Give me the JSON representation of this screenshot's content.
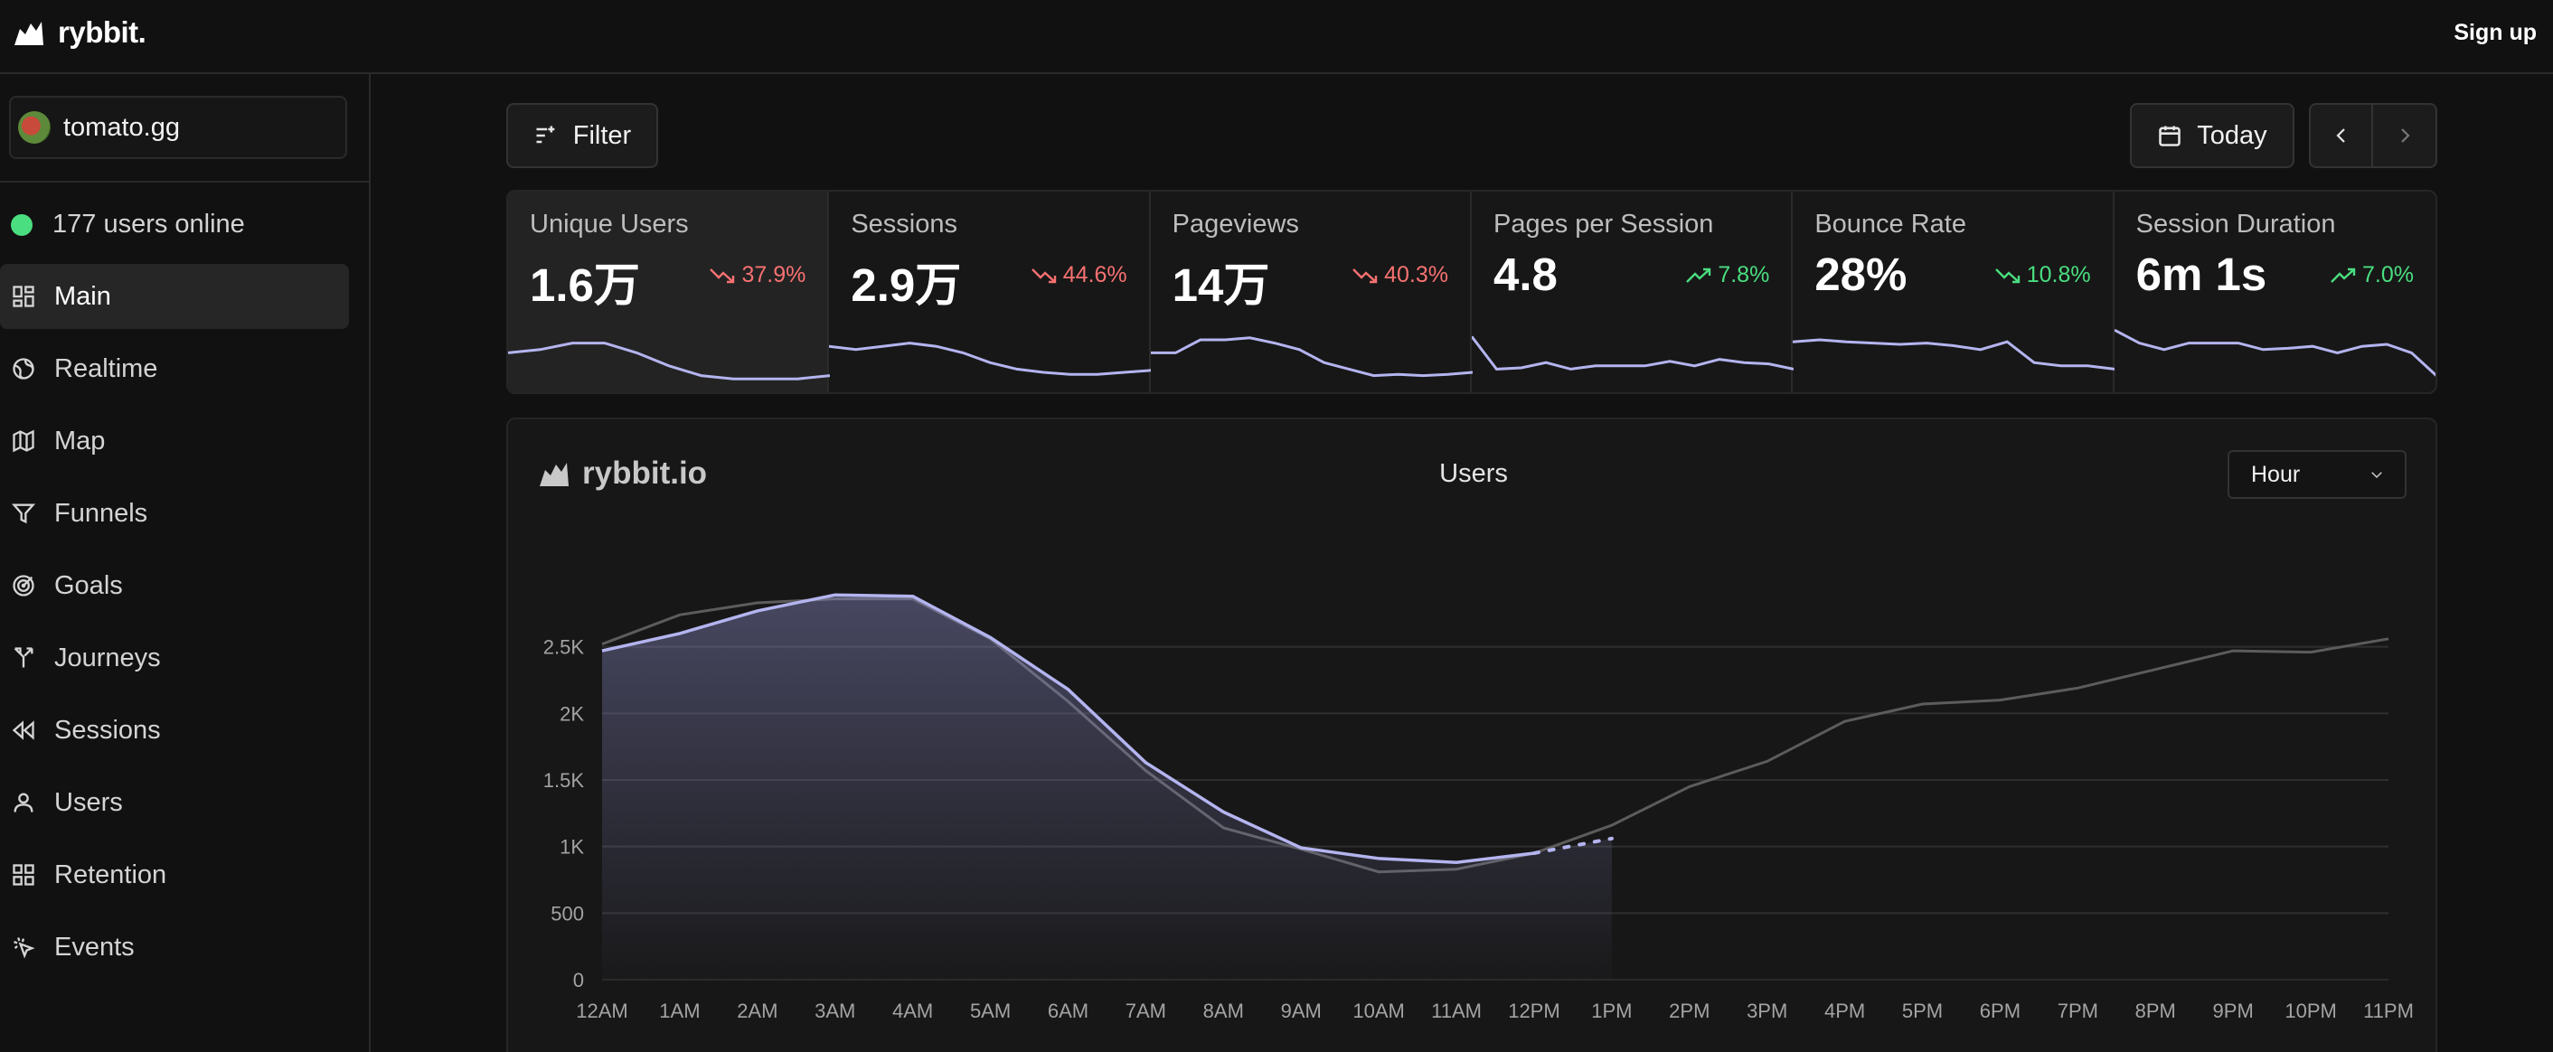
{
  "app": {
    "name": "rybbit.",
    "signup_label": "Sign up"
  },
  "sidebar": {
    "site": "tomato.gg",
    "online_text": "177 users online",
    "items": [
      {
        "label": "Main",
        "icon": "dashboard-icon",
        "active": true
      },
      {
        "label": "Realtime",
        "icon": "globe-icon"
      },
      {
        "label": "Map",
        "icon": "map-icon"
      },
      {
        "label": "Funnels",
        "icon": "funnel-icon"
      },
      {
        "label": "Goals",
        "icon": "target-icon"
      },
      {
        "label": "Journeys",
        "icon": "split-icon"
      },
      {
        "label": "Sessions",
        "icon": "rewind-icon"
      },
      {
        "label": "Users",
        "icon": "user-icon"
      },
      {
        "label": "Retention",
        "icon": "grid-icon"
      },
      {
        "label": "Events",
        "icon": "pointer-click-icon"
      }
    ]
  },
  "toolbar": {
    "filter_label": "Filter",
    "date_label": "Today"
  },
  "metrics": [
    {
      "label": "Unique Users",
      "value": "1.6万",
      "change": "37.9%",
      "trend": "down"
    },
    {
      "label": "Sessions",
      "value": "2.9万",
      "change": "44.6%",
      "trend": "down"
    },
    {
      "label": "Pageviews",
      "value": "14万",
      "change": "40.3%",
      "trend": "down"
    },
    {
      "label": "Pages per Session",
      "value": "4.8",
      "change": "7.8%",
      "trend": "up"
    },
    {
      "label": "Bounce Rate",
      "value": "28%",
      "change": "10.8%",
      "trend": "up"
    },
    {
      "label": "Session Duration",
      "value": "6m 1s",
      "change": "7.0%",
      "trend": "up"
    }
  ],
  "chart": {
    "brand": "rybbit.io",
    "title": "Users",
    "granularity": "Hour"
  },
  "chart_data": {
    "type": "line",
    "title": "Users",
    "x": [
      "12AM",
      "1AM",
      "2AM",
      "3AM",
      "4AM",
      "5AM",
      "6AM",
      "7AM",
      "8AM",
      "9AM",
      "10AM",
      "11AM",
      "12PM",
      "1PM",
      "2PM",
      "3PM",
      "4PM",
      "5PM",
      "6PM",
      "7PM",
      "8PM",
      "9PM",
      "10PM",
      "11PM"
    ],
    "yticks": [
      "0",
      "500",
      "1K",
      "1.5K",
      "2K",
      "2.5K"
    ],
    "ylim": [
      0,
      3000
    ],
    "series": [
      {
        "values": [
          2470,
          2600,
          2770,
          2890,
          2880,
          2570,
          2180,
          1630,
          1260,
          990,
          910,
          880,
          950,
          1060,
          null,
          null,
          null,
          null,
          null,
          null,
          null,
          null,
          null,
          null
        ],
        "color": "#b4b4f0",
        "style": "current"
      },
      {
        "values": [
          2520,
          2740,
          2830,
          2860,
          2860,
          2560,
          2090,
          1570,
          1140,
          980,
          810,
          830,
          950,
          1160,
          1450,
          1640,
          1940,
          2070,
          2100,
          2190,
          2330,
          2470,
          2460,
          2560
        ],
        "color": "#5c5c5c",
        "style": "previous"
      }
    ],
    "grid": true
  },
  "sparklines": [
    [
      0.55,
      0.6,
      0.7,
      0.7,
      0.55,
      0.35,
      0.2,
      0.15,
      0.15,
      0.15,
      0.2
    ],
    [
      0.65,
      0.6,
      0.65,
      0.7,
      0.65,
      0.55,
      0.4,
      0.3,
      0.25,
      0.22,
      0.22,
      0.25,
      0.28
    ],
    [
      0.55,
      0.55,
      0.75,
      0.75,
      0.78,
      0.7,
      0.6,
      0.4,
      0.3,
      0.2,
      0.22,
      0.2,
      0.22,
      0.25
    ],
    [
      0.8,
      0.3,
      0.32,
      0.4,
      0.3,
      0.35,
      0.35,
      0.35,
      0.42,
      0.35,
      0.45,
      0.4,
      0.38,
      0.3
    ],
    [
      0.72,
      0.75,
      0.72,
      0.7,
      0.68,
      0.7,
      0.66,
      0.6,
      0.72,
      0.4,
      0.35,
      0.35,
      0.3
    ],
    [
      0.9,
      0.7,
      0.6,
      0.7,
      0.7,
      0.7,
      0.6,
      0.62,
      0.65,
      0.55,
      0.65,
      0.68,
      0.55,
      0.2
    ]
  ]
}
